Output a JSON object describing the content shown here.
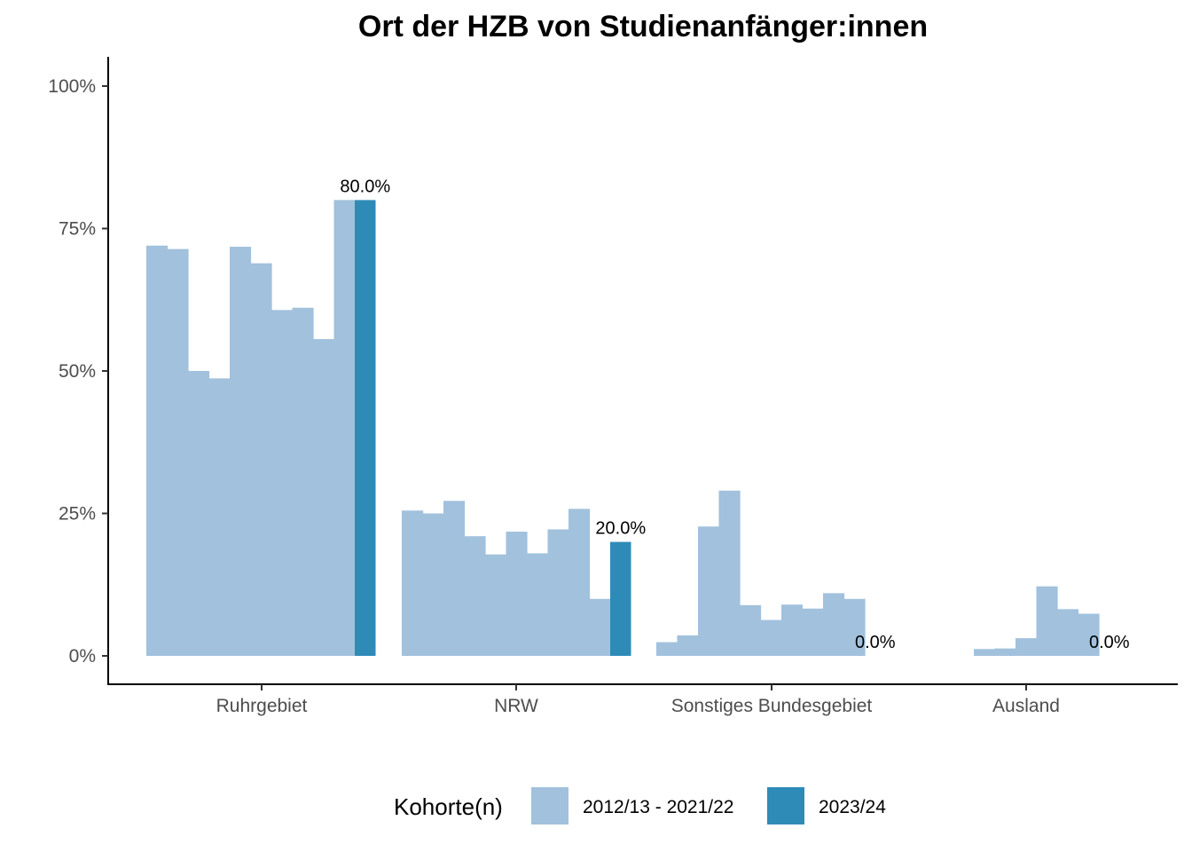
{
  "chart_data": {
    "type": "bar",
    "title": "Ort der HZB von Studienanfänger:innen",
    "xlabel": "",
    "ylabel": "",
    "ylim": [
      0,
      1
    ],
    "y_ticks": [
      "0%",
      "25%",
      "50%",
      "75%",
      "100%"
    ],
    "y_tick_values": [
      0,
      0.25,
      0.5,
      0.75,
      1.0
    ],
    "grid": false,
    "legend_position": "bottom",
    "colors": {
      "history": "#a1c1dd",
      "current": "#2e8bb8"
    },
    "legend": {
      "title": "Kohorte(n)",
      "entries": [
        "2012/13 - 2021/22",
        "2023/24"
      ]
    },
    "categories": [
      "Ruhrgebiet",
      "NRW",
      "Sonstiges Bundesgebiet",
      "Ausland"
    ],
    "series": [
      {
        "name": "2012/13 - 2021/22",
        "values": [
          [
            0.72,
            0.714,
            0.5,
            0.487,
            0.718,
            0.689,
            0.607,
            0.611,
            0.556,
            0.8
          ],
          [
            0.255,
            0.25,
            0.272,
            0.21,
            0.178,
            0.218,
            0.18,
            0.222,
            0.258,
            0.1
          ],
          [
            0.024,
            0.036,
            0.227,
            0.29,
            0.089,
            0.063,
            0.09,
            0.083,
            0.11,
            0.1
          ],
          [
            0.012,
            0.013,
            0.031,
            0.122,
            0.082,
            0.074
          ]
        ]
      },
      {
        "name": "2023/24",
        "values": [
          0.8,
          0.2,
          0.0,
          0.0
        ],
        "labels": [
          "80.0%",
          "20.0%",
          "0.0%",
          "0.0%"
        ]
      }
    ]
  }
}
